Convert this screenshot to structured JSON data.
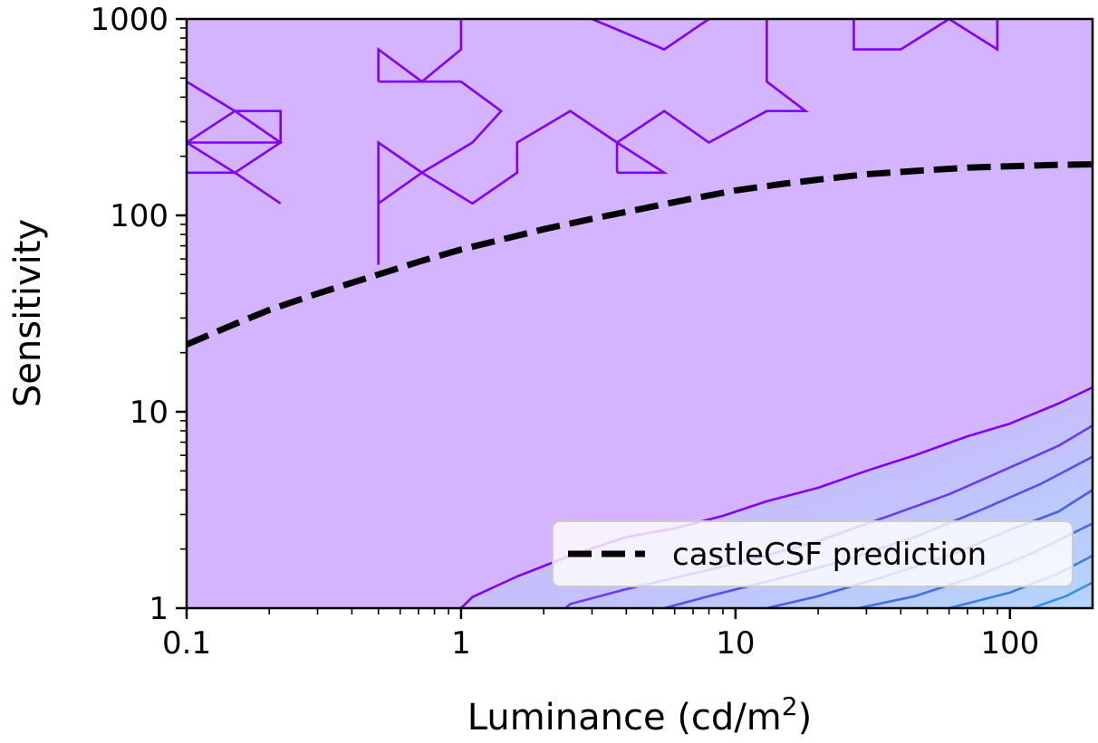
{
  "chart_data": {
    "type": "line",
    "title": "",
    "xlabel": "Luminance (cd/m",
    "xlabel_sup": "2",
    "xlabel_suffix": ")",
    "ylabel": "Sensitivity",
    "xscale": "log",
    "yscale": "log",
    "xlim": [
      0.1,
      200
    ],
    "ylim": [
      1,
      1000
    ],
    "x_ticks": [
      0.1,
      1,
      10,
      100
    ],
    "x_tick_labels": [
      "0.1",
      "1",
      "10",
      "100"
    ],
    "y_ticks": [
      1,
      10,
      100,
      1000
    ],
    "y_tick_labels": [
      "1",
      "10",
      "100",
      "1000"
    ],
    "legend_position": "lower-right",
    "background_fill": "#d5b4ff",
    "series": [
      {
        "name": "castleCSF prediction",
        "style": "dashed",
        "color": "#000000",
        "x": [
          0.1,
          0.15,
          0.2,
          0.3,
          0.5,
          0.7,
          1,
          1.5,
          2,
          3,
          5,
          7,
          10,
          15,
          20,
          30,
          50,
          70,
          100,
          150,
          200
        ],
        "y": [
          22,
          28,
          33,
          40,
          50,
          58,
          67,
          77,
          85,
          96,
          111,
          122,
          134,
          145,
          152,
          162,
          170,
          175,
          178,
          181,
          182
        ]
      }
    ],
    "contour_lines": [
      {
        "level": 1,
        "color": "#8000ff",
        "points": [
          [
            1,
            1
          ],
          [
            1.1,
            1.14
          ],
          [
            1.6,
            1.45
          ],
          [
            2.5,
            1.85
          ],
          [
            4,
            2.3
          ],
          [
            6,
            2.55
          ],
          [
            9,
            2.95
          ],
          [
            13,
            3.5
          ],
          [
            20,
            4.1
          ],
          [
            30,
            5.0
          ],
          [
            45,
            6.0
          ],
          [
            70,
            7.5
          ],
          [
            100,
            8.7
          ],
          [
            150,
            11
          ],
          [
            200,
            13.3
          ]
        ]
      },
      {
        "level": 2,
        "color": "#6a3af5",
        "points": [
          [
            2.4,
            1
          ],
          [
            2.5,
            1.05
          ],
          [
            4,
            1.25
          ],
          [
            7,
            1.5
          ],
          [
            12,
            1.8
          ],
          [
            20,
            2.2
          ],
          [
            35,
            2.9
          ],
          [
            60,
            3.8
          ],
          [
            100,
            5.2
          ],
          [
            150,
            6.7
          ],
          [
            200,
            8.5
          ]
        ]
      },
      {
        "level": 3,
        "color": "#5550ee",
        "points": [
          [
            5.5,
            1
          ],
          [
            8,
            1.15
          ],
          [
            14,
            1.4
          ],
          [
            25,
            1.75
          ],
          [
            45,
            2.3
          ],
          [
            80,
            3.2
          ],
          [
            130,
            4.3
          ],
          [
            200,
            5.9
          ]
        ]
      },
      {
        "level": 4,
        "color": "#4a5fe8",
        "points": [
          [
            13,
            1
          ],
          [
            20,
            1.15
          ],
          [
            35,
            1.45
          ],
          [
            60,
            1.85
          ],
          [
            100,
            2.5
          ],
          [
            150,
            3.1
          ],
          [
            200,
            4.0
          ]
        ]
      },
      {
        "level": 5,
        "color": "#3f70e5",
        "points": [
          [
            28,
            1
          ],
          [
            45,
            1.15
          ],
          [
            75,
            1.45
          ],
          [
            120,
            1.9
          ],
          [
            200,
            2.7
          ]
        ]
      },
      {
        "level": 6,
        "color": "#3a80e4",
        "points": [
          [
            60,
            1
          ],
          [
            100,
            1.2
          ],
          [
            150,
            1.5
          ],
          [
            200,
            1.85
          ]
        ]
      },
      {
        "level": 7,
        "color": "#3592e2",
        "points": [
          [
            120,
            1
          ],
          [
            160,
            1.15
          ],
          [
            200,
            1.35
          ]
        ]
      }
    ],
    "noise_contours": [
      [
        [
          0.1,
          480
        ],
        [
          0.15,
          340
        ],
        [
          0.22,
          340
        ],
        [
          0.22,
          235
        ],
        [
          0.1,
          235
        ]
      ],
      [
        [
          0.1,
          165
        ],
        [
          0.15,
          165
        ],
        [
          0.22,
          115
        ],
        [
          0.15,
          165
        ]
      ],
      [
        [
          0.1,
          235
        ],
        [
          0.15,
          340
        ],
        [
          0.22,
          235
        ],
        [
          0.15,
          165
        ],
        [
          0.1,
          235
        ]
      ],
      [
        [
          0.5,
          56
        ],
        [
          0.5,
          115
        ],
        [
          0.5,
          235
        ],
        [
          0.72,
          165
        ],
        [
          0.5,
          115
        ],
        [
          0.5,
          56
        ]
      ],
      [
        [
          0.72,
          165
        ],
        [
          1.1,
          115
        ],
        [
          1.6,
          165
        ],
        [
          1.6,
          235
        ],
        [
          2.5,
          340
        ],
        [
          3.7,
          235
        ],
        [
          5.5,
          340
        ],
        [
          8,
          235
        ],
        [
          13,
          340
        ],
        [
          18,
          340
        ],
        [
          13,
          480
        ],
        [
          13,
          1000
        ]
      ],
      [
        [
          0.5,
          480
        ],
        [
          0.5,
          700
        ],
        [
          0.72,
          480
        ],
        [
          1,
          700
        ],
        [
          1,
          1000
        ]
      ],
      [
        [
          0.5,
          480
        ],
        [
          1,
          480
        ],
        [
          1.4,
          340
        ],
        [
          1.1,
          235
        ],
        [
          0.72,
          165
        ]
      ],
      [
        [
          3.7,
          165
        ],
        [
          3.7,
          235
        ],
        [
          5.5,
          165
        ],
        [
          3.7,
          165
        ]
      ],
      [
        [
          3,
          1000
        ],
        [
          5.5,
          700
        ],
        [
          8,
          1000
        ]
      ],
      [
        [
          27,
          1000
        ],
        [
          27,
          700
        ],
        [
          40,
          700
        ],
        [
          60,
          1000
        ],
        [
          90,
          700
        ],
        [
          90,
          1000
        ]
      ]
    ]
  }
}
